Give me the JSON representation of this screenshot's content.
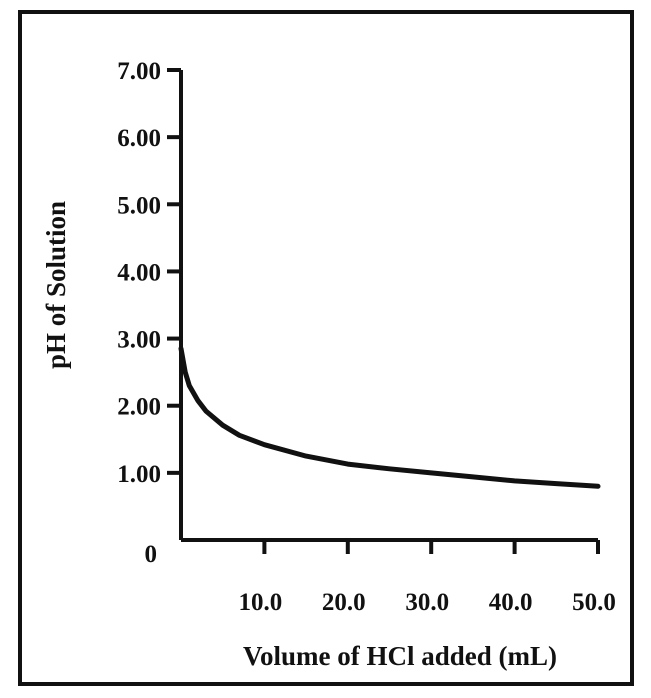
{
  "chart_data": {
    "type": "line",
    "title": "",
    "xlabel": "Volume of HCl added (mL)",
    "ylabel": "pH of Solution",
    "xlim": [
      0,
      50
    ],
    "ylim": [
      0,
      7
    ],
    "x_ticks": [
      10,
      20,
      30,
      40,
      50
    ],
    "x_tick_labels": [
      "10.0",
      "20.0",
      "30.0",
      "40.0",
      "50.0"
    ],
    "y_ticks": [
      0,
      1,
      2,
      3,
      4,
      5,
      6,
      7
    ],
    "y_tick_labels": [
      "0",
      "1.00",
      "2.00",
      "3.00",
      "4.00",
      "5.00",
      "6.00",
      "7.00"
    ],
    "grid": false,
    "legend": "none",
    "series": [
      {
        "color": "#111111",
        "x": [
          0,
          0.5,
          1,
          2,
          3,
          5,
          7,
          10,
          15,
          20,
          25,
          30,
          35,
          40,
          45,
          50
        ],
        "y": [
          2.85,
          2.5,
          2.3,
          2.08,
          1.92,
          1.71,
          1.56,
          1.42,
          1.25,
          1.13,
          1.06,
          1.0,
          0.94,
          0.88,
          0.84,
          0.8
        ]
      }
    ]
  }
}
